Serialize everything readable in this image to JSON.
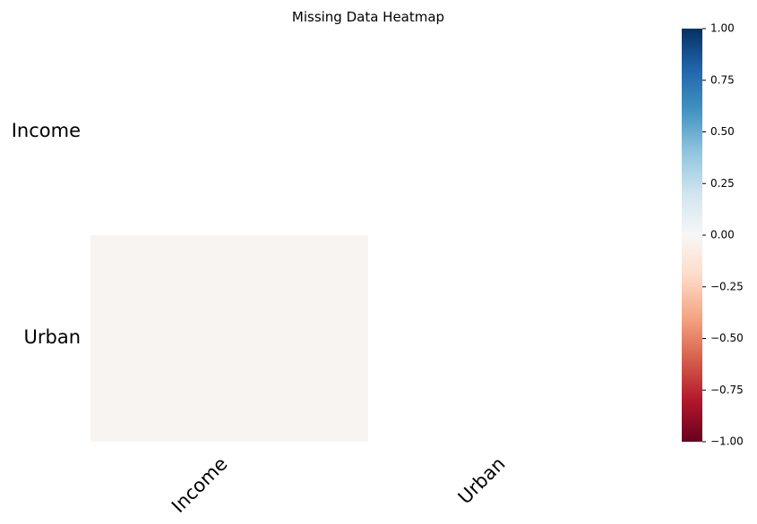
{
  "chart_data": {
    "type": "heatmap",
    "title": "Missing Data Heatmap",
    "rows": [
      "Income",
      "Urban"
    ],
    "columns": [
      "Income",
      "Urban"
    ],
    "values": [
      [
        null,
        null
      ],
      [
        -0.02,
        null
      ]
    ],
    "colorbar": {
      "min": -1.0,
      "max": 1.0,
      "colormap": "RdBu",
      "ticks": [
        -1.0,
        -0.75,
        -0.5,
        -0.25,
        0.0,
        0.25,
        0.5,
        0.75,
        1.0
      ],
      "tick_labels": [
        "−1.00",
        "−0.75",
        "−0.50",
        "−0.25",
        "0.00",
        "0.25",
        "0.50",
        "0.75",
        "1.00"
      ]
    },
    "cell_text_shown": false,
    "upper_triangle_masked": true
  }
}
